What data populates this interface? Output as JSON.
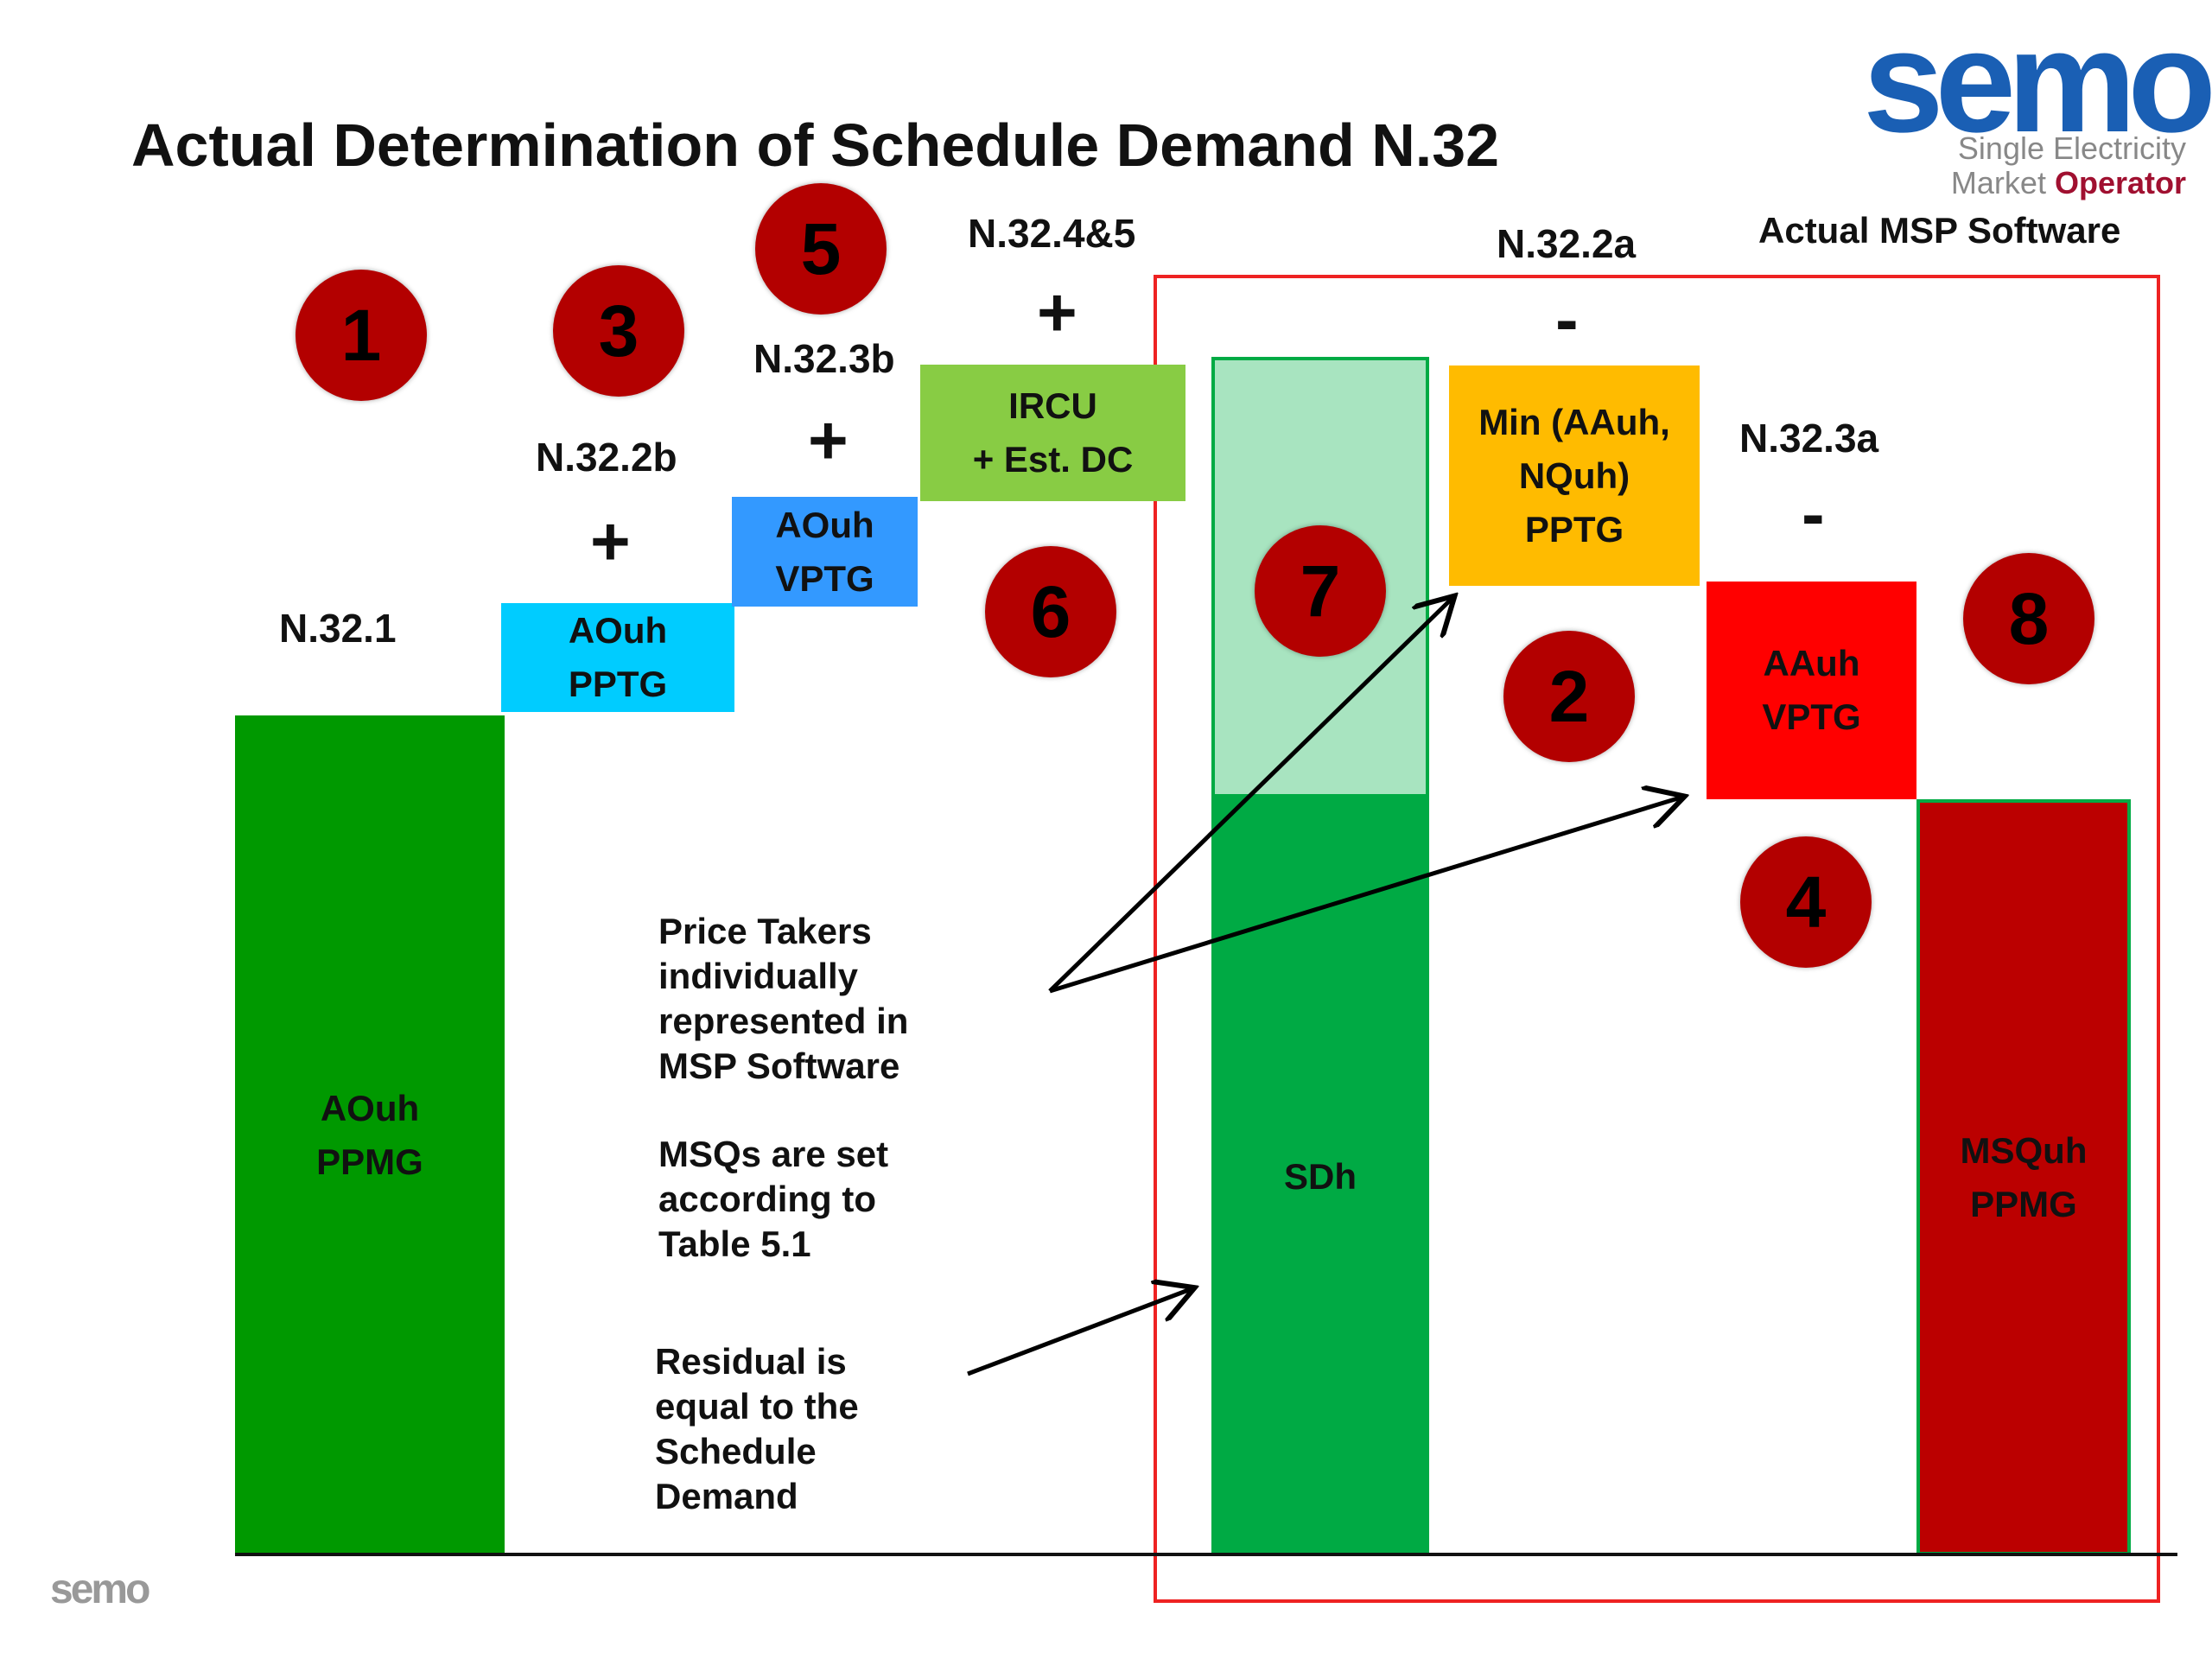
{
  "title": "Actual Determination of Schedule Demand N.32",
  "logo": {
    "word": "semo",
    "line1": "Single Electricity",
    "line2a": "Market ",
    "line2b": "Operator",
    "colors": {
      "blue": "#1a5fb4",
      "red": "#a01030"
    }
  },
  "footer_logo": {
    "word": "semo"
  },
  "software_label": "Actual MSP Software",
  "labels": {
    "n321": "N.32.1",
    "n322b": "N.32.2b",
    "n323b": "N.32.3b",
    "n3245": "N.32.4&5",
    "n322a": "N.32.2a",
    "n323a": "N.32.3a"
  },
  "operators": {
    "plus1": "+",
    "plus2": "+",
    "plus3": "+",
    "minus1": "-",
    "minus2": "-"
  },
  "boxes": {
    "aouh_ppmg": {
      "line1": "AOuh",
      "line2": "PPMG",
      "color": "#009900"
    },
    "aouh_pptg": {
      "line1": "AOuh",
      "line2": "PPTG",
      "color": "#00ccff"
    },
    "aouh_vptg": {
      "line1": "AOuh",
      "line2": "VPTG",
      "color": "#3399ff"
    },
    "ircu": {
      "line1": "IRCU",
      "line2": "+ Est. DC",
      "color": "#88cc44"
    },
    "sdh": {
      "line1": "SDh",
      "color_top": "#a8e4c0",
      "color_bottom": "#00aa44"
    },
    "min_aauh": {
      "line1": "Min (AAuh,",
      "line2": "NQuh)",
      "line3": "PPTG",
      "color": "#ffbb00"
    },
    "aauh_vptg": {
      "line1": "AAuh",
      "line2": "VPTG",
      "color": "#ff0000"
    },
    "msquh_ppmg": {
      "line1": "MSQuh",
      "line2": "PPMG",
      "color": "#bb0000"
    }
  },
  "circles": [
    "1",
    "3",
    "5",
    "6",
    "7",
    "2",
    "8",
    "4"
  ],
  "notes": {
    "price_takers": [
      "Price Takers",
      "individually",
      "represented in",
      "MSP Software"
    ],
    "msqs": [
      "MSQs are set",
      "according to",
      "Table 5.1"
    ],
    "residual": [
      "Residual is",
      "equal to the",
      "Schedule",
      "Demand"
    ]
  }
}
